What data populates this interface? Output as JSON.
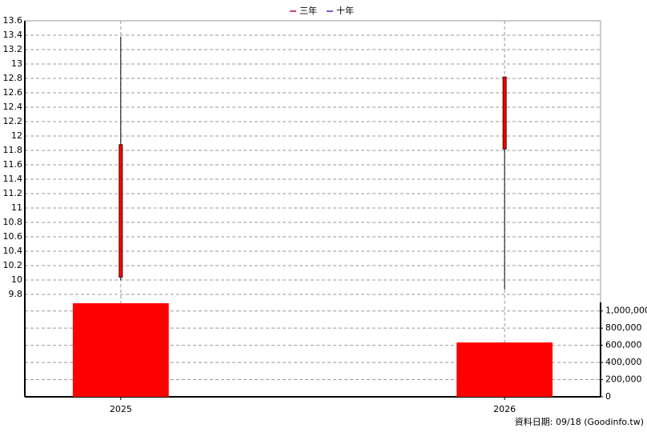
{
  "chart_data": {
    "type": "candlestick",
    "legend": [
      {
        "name": "三年",
        "color": "#c00040"
      },
      {
        "name": "十年",
        "color": "#6020c0"
      }
    ],
    "x": [
      2025,
      2026
    ],
    "xlim": [
      2024.75,
      2026.25
    ],
    "xticks": [
      2025,
      2026
    ],
    "series": [
      {
        "name": "price",
        "color": "#ff0000",
        "open": [
          10.04,
          11.82
        ],
        "high": [
          13.38,
          12.82
        ],
        "low": [
          10.0,
          9.87
        ],
        "close": [
          11.88,
          12.82
        ]
      },
      {
        "name": "volume",
        "axis": "y2",
        "color": "#ff0000",
        "values": [
          1090000,
          633000
        ]
      }
    ],
    "ylim": [
      9.7,
      13.6
    ],
    "yticks": [
      9.8,
      10,
      10.2,
      10.4,
      10.6,
      10.8,
      11,
      11.2,
      11.4,
      11.6,
      11.8,
      12,
      12.2,
      12.4,
      12.6,
      12.8,
      13,
      13.2,
      13.4,
      13.6
    ],
    "y2lim": [
      0,
      1100000
    ],
    "y2ticks": [
      0,
      {
        "value": 200000,
        "label": "200,000"
      },
      {
        "value": 400000,
        "label": "400,000"
      },
      {
        "value": 600000,
        "label": "600,000"
      },
      {
        "value": 800000,
        "label": "800,000"
      },
      {
        "value": 1000000,
        "label": "1,000,000"
      }
    ],
    "grid": true,
    "footer": "資料日期: 09/18  (Goodinfo.tw)"
  }
}
